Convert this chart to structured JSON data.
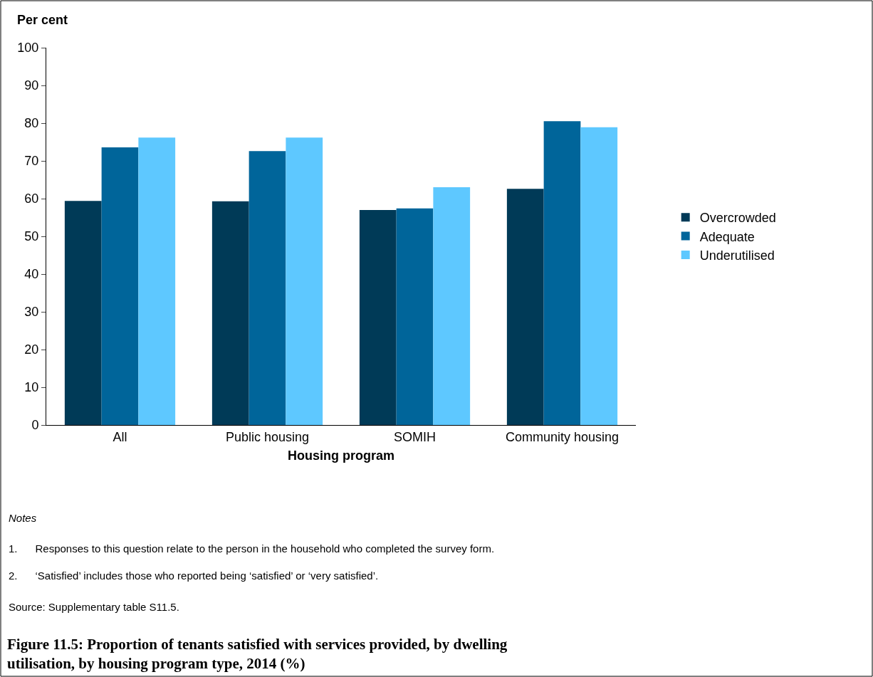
{
  "chart_data": {
    "type": "bar",
    "title": "Figure 11.5: Proportion of tenants satisfied with services provided, by dwelling utilisation, by housing program type, 2014 (%)",
    "ylabel": "Per cent",
    "xlabel": "Housing program",
    "categories": [
      "All",
      "Public housing",
      "SOMIH",
      "Community housing"
    ],
    "series": [
      {
        "name": "Overcrowded",
        "color": "#003a57",
        "values": [
          59.4,
          59.3,
          57.0,
          62.6
        ]
      },
      {
        "name": "Adequate",
        "color": "#00659a",
        "values": [
          73.6,
          72.6,
          57.4,
          80.5
        ]
      },
      {
        "name": "Underutilised",
        "color": "#5ec8ff",
        "values": [
          76.2,
          76.2,
          63.0,
          78.9
        ]
      }
    ],
    "ylim": [
      0,
      100
    ],
    "yticks": [
      0,
      10,
      20,
      30,
      40,
      50,
      60,
      70,
      80,
      90,
      100
    ],
    "grid": false,
    "legend": "right",
    "annotations": [
      "Notes",
      "1.      Responses to this question relate to the person in the household who completed the survey form.",
      "2.      ‘Satisfied’ includes those who reported being ‘satisfied’ or ‘very satisfied’.",
      "Source: Supplementary table S11.5."
    ]
  }
}
